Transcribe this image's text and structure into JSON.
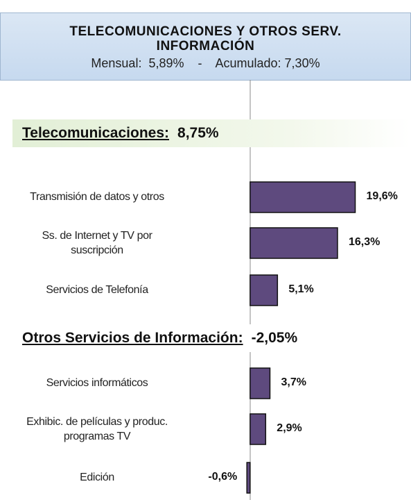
{
  "chart_data": {
    "type": "bar",
    "title": "TELECOMUNICACIONES Y OTROS SERV. INFORMACIÓN",
    "subtitle": "Mensual:  5,89%    -    Acumulado: 7,30%",
    "color": "#5e4a7e",
    "xlim": [
      -12,
      30
    ],
    "groups": [
      {
        "title": "Telecomunicaciones:",
        "total": "8,75%",
        "categories": [
          "Transmisión de datos y otros",
          "Ss. de Internet y TV por suscripción",
          "Servicios de Telefonía"
        ],
        "values": [
          19.6,
          16.3,
          5.1
        ],
        "value_labels": [
          "19,6%",
          "16,3%",
          "5,1%"
        ]
      },
      {
        "title": "Otros Servicios de Información:",
        "total": "-2,05%",
        "categories": [
          "Servicios informáticos",
          "Exhibic. de películas  y produc. programas TV",
          "Edición"
        ],
        "values": [
          3.7,
          2.9,
          -0.6
        ],
        "value_labels": [
          "3,7%",
          "2,9%",
          "-0,6%"
        ]
      }
    ]
  }
}
